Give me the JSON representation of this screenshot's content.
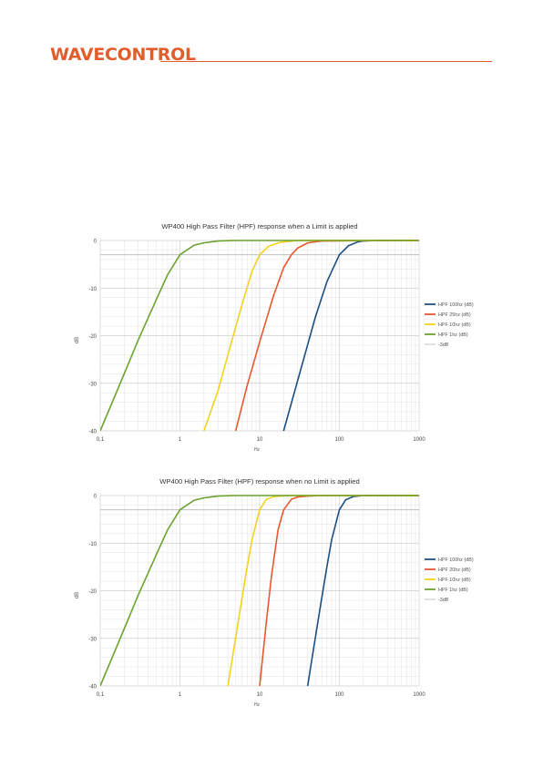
{
  "header": {
    "logo_text": "WAVECONTROL"
  },
  "colors": {
    "brand": "#e35d2c",
    "series": [
      "#1b4f83",
      "#e8582f",
      "#f2d21b",
      "#6aa32e"
    ],
    "reference": "#b5b5b5",
    "grid": "#e2e2e2",
    "major_grid": "#cfcfcf"
  },
  "chart_data": [
    {
      "type": "line",
      "title": "WP400 High Pass Filter (HPF) response when a Limit is applied",
      "xlabel": "Hz",
      "ylabel": "dB",
      "x_scale": "log",
      "xlim": [
        0.1,
        1000
      ],
      "ylim": [
        -40,
        0
      ],
      "x_ticks": [
        "0,1",
        "1",
        "10",
        "100",
        "1000"
      ],
      "y_ticks": [
        "0",
        "-10",
        "-20",
        "-30",
        "-40"
      ],
      "grid": true,
      "legend_position": "right",
      "series": [
        {
          "name": "HPF 100hz (dB)",
          "x": [
            20,
            30,
            50,
            70,
            100,
            130,
            170,
            200,
            300,
            1000
          ],
          "y": [
            -40,
            -29.4,
            -16.1,
            -8.6,
            -3.0,
            -1.1,
            -0.3,
            -0.1,
            0,
            0
          ]
        },
        {
          "name": "HPF 25hz (dB)",
          "x": [
            5,
            7,
            10,
            15,
            20,
            25,
            30,
            40,
            60,
            1000
          ],
          "y": [
            -40,
            -30.4,
            -21.3,
            -11.5,
            -5.7,
            -3.0,
            -1.6,
            -0.5,
            -0.1,
            0
          ]
        },
        {
          "name": "HPF 10hz (dB)",
          "x": [
            2,
            3,
            4,
            6,
            8,
            10,
            13,
            18,
            30,
            1000
          ],
          "y": [
            -40,
            -31.6,
            -24.0,
            -13.5,
            -6.5,
            -3.0,
            -1.2,
            -0.4,
            0,
            0
          ]
        },
        {
          "name": "HPF 1hz (dB)",
          "x": [
            0.1,
            0.2,
            0.3,
            0.5,
            0.7,
            1,
            1.5,
            2,
            3,
            5,
            1000
          ],
          "y": [
            -40,
            -28.0,
            -20.9,
            -12.6,
            -7.2,
            -3.0,
            -1.0,
            -0.5,
            -0.1,
            0,
            0
          ]
        },
        {
          "name": "-3dB",
          "x": [
            0.1,
            1000
          ],
          "y": [
            -3,
            -3
          ]
        }
      ]
    },
    {
      "type": "line",
      "title": "WP400 High Pass Filter (HPF) response when no Limit is applied",
      "xlabel": "Hz",
      "ylabel": "dB",
      "x_scale": "log",
      "xlim": [
        0.1,
        1000
      ],
      "ylim": [
        -40,
        0
      ],
      "x_ticks": [
        "0,1",
        "1",
        "10",
        "100",
        "1000"
      ],
      "y_ticks": [
        "0",
        "-10",
        "-20",
        "-30",
        "-40"
      ],
      "grid": true,
      "legend_position": "right",
      "series": [
        {
          "name": "HPF 100hz (dB)",
          "x": [
            40,
            50,
            60,
            70,
            80,
            100,
            120,
            150,
            200,
            300,
            1000
          ],
          "y": [
            -40,
            -29.8,
            -21.6,
            -14.8,
            -9.3,
            -3.0,
            -0.9,
            -0.2,
            0,
            0,
            0
          ]
        },
        {
          "name": "HPF 20hz (dB)",
          "x": [
            10,
            12,
            14,
            17,
            20,
            25,
            30,
            40,
            60,
            1000
          ],
          "y": [
            -40,
            -27.3,
            -17.2,
            -7.2,
            -3.0,
            -0.8,
            -0.3,
            -0.1,
            0,
            0
          ]
        },
        {
          "name": "HPF 10hz (dB)",
          "x": [
            4,
            5,
            6,
            7,
            8,
            10,
            12,
            15,
            25,
            1000
          ],
          "y": [
            -40,
            -29.8,
            -21.6,
            -14.8,
            -9.3,
            -3.0,
            -0.9,
            -0.2,
            0,
            0
          ]
        },
        {
          "name": "HPF 1hz (dB)",
          "x": [
            0.1,
            0.2,
            0.3,
            0.5,
            0.7,
            1,
            1.5,
            2,
            3,
            5,
            1000
          ],
          "y": [
            -40,
            -28.0,
            -20.9,
            -12.6,
            -7.2,
            -3.0,
            -1.0,
            -0.5,
            -0.1,
            0,
            0
          ]
        },
        {
          "name": "-3dB",
          "x": [
            0.1,
            1000
          ],
          "y": [
            -3,
            -3
          ]
        }
      ]
    }
  ]
}
